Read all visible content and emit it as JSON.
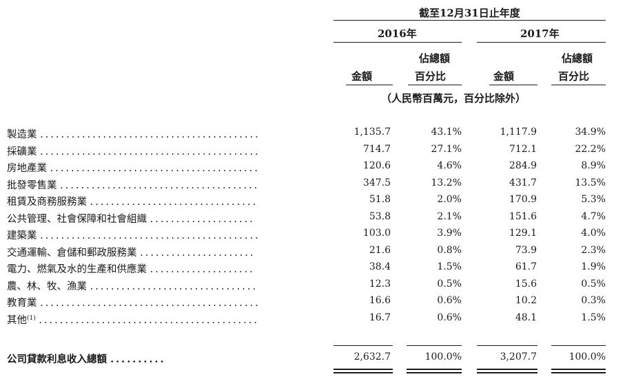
{
  "header": {
    "period_title": "截至12月31日止年度",
    "year_2016": "2016年",
    "year_2017": "2017年",
    "amount_label": "金額",
    "pct_label_line1": "佔總額",
    "pct_label_line2": "百分比",
    "unit_note": "（人民幣百萬元，百分比除外）"
  },
  "rows": [
    {
      "label": "製造業",
      "dots": "..........................................",
      "a2016": "1,135.7",
      "p2016": "43.1%",
      "a2017": "1,117.9",
      "p2017": "34.9%"
    },
    {
      "label": "採礦業",
      "dots": "..........................................",
      "a2016": "714.7",
      "p2016": "27.1%",
      "a2017": "712.1",
      "p2017": "22.2%"
    },
    {
      "label": "房地產業",
      "dots": "........................................",
      "a2016": "120.6",
      "p2016": "4.6%",
      "a2017": "284.9",
      "p2017": "8.9%"
    },
    {
      "label": "批發零售業",
      "dots": "......................................",
      "a2016": "347.5",
      "p2016": "13.2%",
      "a2017": "431.7",
      "p2017": "13.5%"
    },
    {
      "label": "租賃及商務服務業",
      "dots": "................................",
      "a2016": "51.8",
      "p2016": "2.0%",
      "a2017": "170.9",
      "p2017": "5.3%"
    },
    {
      "label": "公共管理、社會保障和社會組織",
      "dots": "....................",
      "a2016": "53.8",
      "p2016": "2.1%",
      "a2017": "151.6",
      "p2017": "4.7%"
    },
    {
      "label": "建築業",
      "dots": "..........................................",
      "a2016": "103.0",
      "p2016": "3.9%",
      "a2017": "129.1",
      "p2017": "4.0%"
    },
    {
      "label": "交通運輸、倉儲和郵政服務業",
      "dots": "......................",
      "a2016": "21.6",
      "p2016": "0.8%",
      "a2017": "73.9",
      "p2017": "2.3%"
    },
    {
      "label": "電力、燃氣及水的生產和供應業",
      "dots": "....................",
      "a2016": "38.4",
      "p2016": "1.5%",
      "a2017": "61.7",
      "p2017": "1.9%"
    },
    {
      "label": "農、林、牧、漁業",
      "dots": "................................",
      "a2016": "12.3",
      "p2016": "0.5%",
      "a2017": "15.6",
      "p2017": "0.5%"
    },
    {
      "label": "教育業",
      "dots": "..........................................",
      "a2016": "16.6",
      "p2016": "0.6%",
      "a2017": "10.2",
      "p2017": "0.3%"
    },
    {
      "label": "其他",
      "sup": "(1)",
      "dots": "..........................................",
      "a2016": "16.7",
      "p2016": "0.6%",
      "a2017": "48.1",
      "p2017": "1.5%"
    }
  ],
  "total": {
    "label": "公司貸款利息收入總額",
    "dots": "..........",
    "a2016": "2,632.7",
    "p2016": "100.0%",
    "a2017": "3,207.7",
    "p2017": "100.0%"
  }
}
